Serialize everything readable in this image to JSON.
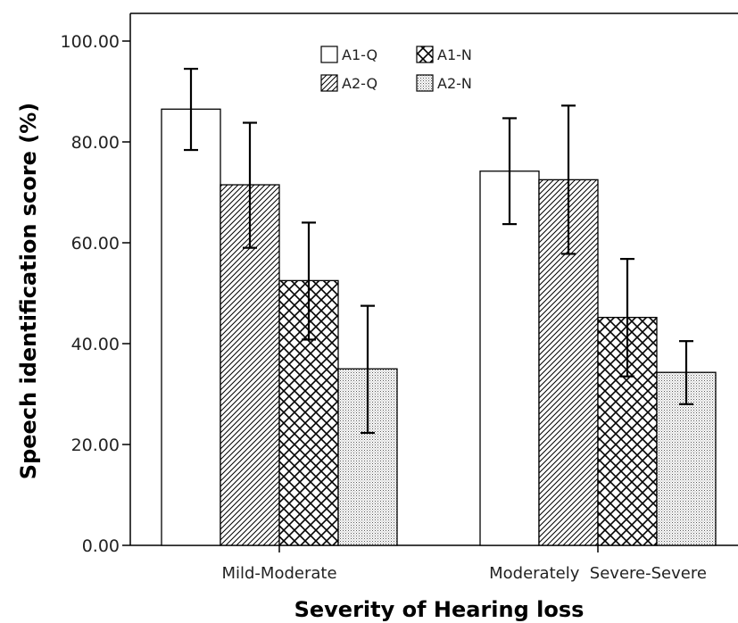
{
  "chart_data": {
    "type": "bar",
    "xlabel": "Severity of Hearing loss",
    "ylabel": "Speech identification score (%)",
    "ylim": [
      0,
      100
    ],
    "yticks": [
      "0.00",
      "20.00",
      "40.00",
      "60.00",
      "80.00",
      "100.00"
    ],
    "categories": [
      "Mild-Moderate",
      "Moderately  Severe-Severe"
    ],
    "series": [
      {
        "name": "A1-Q",
        "pattern": "plain",
        "values": [
          86.5,
          74.2
        ],
        "error_low": [
          78.4,
          63.7
        ],
        "error_high": [
          94.5,
          84.7
        ]
      },
      {
        "name": "A2-Q",
        "pattern": "diagonal",
        "values": [
          71.5,
          72.5
        ],
        "error_low": [
          59.0,
          57.8
        ],
        "error_high": [
          83.8,
          87.2
        ]
      },
      {
        "name": "A1-N",
        "pattern": "crosshatch",
        "values": [
          52.5,
          45.2
        ],
        "error_low": [
          40.8,
          33.5
        ],
        "error_high": [
          64.0,
          56.8
        ]
      },
      {
        "name": "A2-N",
        "pattern": "dotted",
        "values": [
          35.0,
          34.3
        ],
        "error_low": [
          22.3,
          28.0
        ],
        "error_high": [
          47.5,
          40.5
        ]
      }
    ],
    "legend_position": "top-center",
    "grid": false,
    "error_bars": true
  }
}
